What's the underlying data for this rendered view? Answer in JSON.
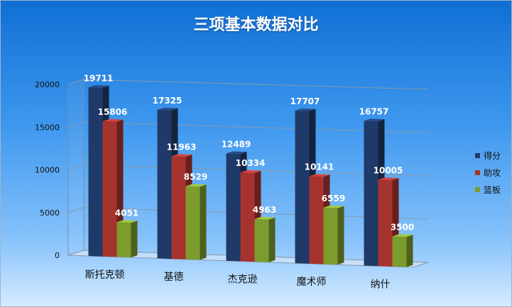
{
  "chart_data": {
    "type": "bar",
    "title": "三项基本数据对比",
    "categories": [
      "斯托克顿",
      "基德",
      "杰克逊",
      "魔术师",
      "纳什"
    ],
    "series": [
      {
        "name": "得分",
        "color": "#1f3a68",
        "values": [
          19711,
          17325,
          12489,
          17707,
          16757
        ]
      },
      {
        "name": "助攻",
        "color": "#a6332e",
        "values": [
          15806,
          11963,
          10334,
          10141,
          10005
        ]
      },
      {
        "name": "篮板",
        "color": "#7c9c2e",
        "values": [
          4051,
          8529,
          4963,
          6559,
          3500
        ]
      }
    ],
    "yticks": [
      "0",
      "5000",
      "10000",
      "15000",
      "20000"
    ],
    "ylim": [
      0,
      20000
    ],
    "grid": true,
    "legend": "right",
    "data_labels": true
  }
}
